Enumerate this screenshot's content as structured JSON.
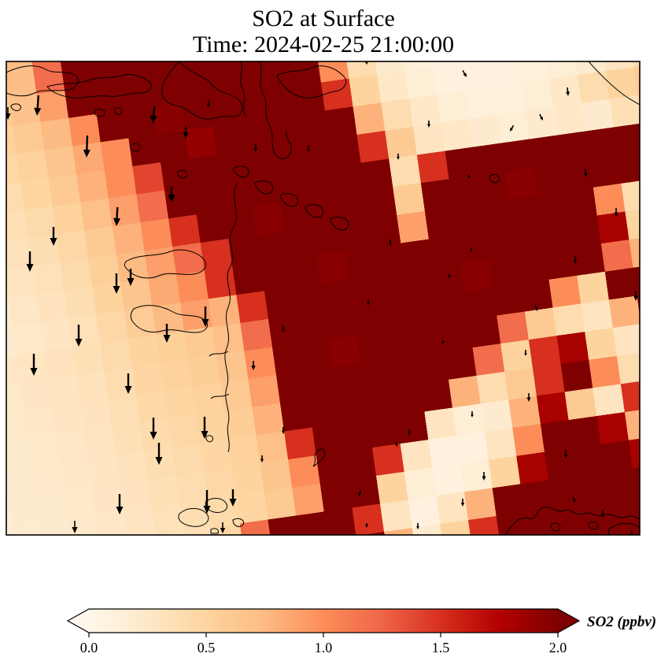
{
  "figure": {
    "background": "#ffffff"
  },
  "chart_data": {
    "type": "heatmap",
    "title": "SO2 at Surface",
    "subtitle": "Time: 2024-02-25 21:00:00",
    "variable": "SO2",
    "units": "ppbv",
    "legend_position": "bottom",
    "colorbar": {
      "label": "SO2 (ppbv)",
      "ticks": [
        0.0,
        0.5,
        1.0,
        1.5,
        2.0
      ],
      "vmin": 0.0,
      "vmax": 2.0,
      "extend": "both",
      "colormap": "OrRd",
      "over_color": "#7f0000",
      "under_color": "#fff7ec"
    },
    "grid": {
      "rows": 19,
      "cols": 26,
      "note": "SO2 ppbv values; 2.3 means above colorbar max (rendered with over color)",
      "values": [
        [
          0.6,
          0.62,
          0.66,
          0.72,
          1.2,
          2.3,
          2.3,
          2.3,
          2.3,
          2.3,
          2.3,
          2.3,
          2.3,
          2.3,
          1.2,
          0.5,
          0.2,
          0.1,
          0.08,
          0.08,
          0.08,
          0.1,
          0.12,
          0.15,
          0.2,
          0.3
        ],
        [
          0.5,
          0.55,
          0.6,
          0.68,
          0.9,
          2.3,
          2.3,
          2.3,
          2.3,
          2.3,
          2.3,
          2.3,
          2.3,
          2.3,
          1.0,
          0.4,
          0.2,
          0.12,
          0.1,
          0.08,
          0.08,
          0.1,
          0.12,
          0.15,
          0.2,
          0.3
        ],
        [
          0.42,
          0.46,
          0.52,
          0.6,
          0.75,
          1.0,
          2.3,
          2.3,
          1.95,
          2.3,
          2.3,
          2.3,
          2.3,
          2.3,
          1.5,
          0.5,
          0.25,
          0.15,
          0.1,
          0.1,
          0.1,
          0.12,
          0.15,
          0.2,
          0.3,
          0.4
        ],
        [
          0.36,
          0.4,
          0.45,
          0.52,
          0.65,
          0.85,
          1.0,
          2.3,
          2.3,
          1.9,
          2.3,
          2.3,
          2.3,
          2.3,
          2.3,
          0.8,
          0.4,
          0.25,
          0.15,
          0.12,
          0.12,
          0.15,
          0.25,
          0.4,
          0.5,
          0.6
        ],
        [
          0.32,
          0.36,
          0.4,
          0.48,
          0.6,
          0.8,
          1.0,
          1.4,
          2.3,
          2.3,
          2.3,
          2.3,
          2.3,
          2.3,
          2.3,
          1.5,
          0.6,
          0.3,
          0.25,
          0.2,
          0.15,
          0.2,
          0.25,
          0.2,
          0.35,
          0.5
        ],
        [
          0.28,
          0.32,
          0.36,
          0.42,
          0.52,
          0.7,
          0.9,
          1.2,
          2.3,
          2.3,
          2.3,
          2.3,
          2.3,
          2.3,
          2.3,
          2.3,
          0.4,
          1.5,
          2.3,
          2.0,
          2.3,
          2.3,
          2.3,
          2.3,
          2.0,
          0.8
        ],
        [
          0.25,
          0.28,
          0.32,
          0.38,
          0.46,
          0.6,
          0.8,
          1.0,
          1.5,
          2.3,
          2.3,
          1.95,
          2.3,
          2.3,
          2.3,
          2.3,
          0.6,
          2.3,
          2.3,
          2.3,
          1.95,
          2.3,
          2.3,
          2.3,
          2.3,
          0.4
        ],
        [
          0.22,
          0.25,
          0.29,
          0.34,
          0.42,
          0.55,
          0.75,
          0.9,
          1.2,
          1.5,
          2.3,
          2.3,
          2.3,
          2.3,
          2.3,
          2.3,
          0.9,
          2.3,
          2.3,
          2.3,
          2.3,
          2.3,
          2.3,
          1.0,
          0.4,
          0.3
        ],
        [
          0.2,
          0.23,
          0.26,
          0.31,
          0.38,
          0.5,
          0.65,
          0.85,
          1.0,
          1.5,
          2.3,
          2.3,
          2.3,
          1.95,
          2.3,
          2.3,
          2.3,
          2.3,
          2.3,
          2.3,
          2.3,
          2.3,
          2.3,
          1.8,
          0.5,
          0.3
        ],
        [
          0.18,
          0.21,
          0.24,
          0.28,
          0.34,
          0.45,
          0.58,
          0.75,
          0.9,
          0.8,
          1.5,
          2.3,
          2.3,
          2.3,
          2.3,
          2.3,
          2.3,
          2.3,
          1.95,
          2.3,
          2.3,
          2.3,
          2.3,
          1.2,
          0.8,
          1.5
        ],
        [
          0.24,
          0.26,
          0.28,
          0.31,
          0.35,
          0.42,
          0.5,
          0.55,
          0.6,
          0.7,
          1.2,
          2.3,
          2.3,
          2.3,
          2.3,
          2.3,
          2.3,
          2.3,
          2.3,
          2.3,
          2.3,
          1.0,
          0.5,
          2.0,
          2.3,
          2.3
        ],
        [
          0.22,
          0.24,
          0.27,
          0.3,
          0.33,
          0.4,
          0.47,
          0.52,
          0.56,
          0.65,
          1.0,
          2.3,
          2.3,
          1.95,
          2.3,
          2.3,
          2.3,
          2.3,
          2.3,
          1.2,
          0.6,
          0.4,
          0.3,
          0.8,
          2.3,
          2.3
        ],
        [
          0.21,
          0.23,
          0.25,
          0.28,
          0.31,
          0.37,
          0.44,
          0.48,
          0.52,
          0.6,
          0.9,
          2.3,
          2.3,
          2.3,
          2.3,
          2.3,
          2.3,
          2.3,
          1.2,
          0.5,
          1.5,
          1.8,
          0.5,
          0.3,
          1.2,
          2.3
        ],
        [
          0.2,
          0.22,
          0.24,
          0.26,
          0.3,
          0.35,
          0.41,
          0.45,
          0.5,
          0.56,
          0.8,
          2.3,
          2.3,
          2.3,
          2.3,
          2.3,
          2.3,
          0.8,
          0.4,
          0.6,
          1.5,
          2.0,
          1.0,
          0.4,
          0.3,
          1.0
        ],
        [
          0.19,
          0.21,
          0.23,
          0.25,
          0.28,
          0.33,
          0.38,
          0.42,
          0.47,
          0.52,
          0.7,
          1.5,
          2.3,
          2.3,
          2.3,
          2.3,
          0.3,
          0.15,
          0.2,
          0.8,
          1.8,
          0.6,
          0.3,
          1.5,
          2.3,
          1.0
        ],
        [
          0.18,
          0.2,
          0.22,
          0.24,
          0.27,
          0.31,
          0.36,
          0.4,
          0.45,
          0.5,
          0.65,
          1.0,
          2.3,
          2.3,
          1.5,
          0.3,
          0.1,
          0.1,
          0.3,
          1.0,
          2.3,
          2.3,
          1.8,
          0.8,
          1.5,
          2.3
        ],
        [
          0.17,
          0.19,
          0.21,
          0.23,
          0.26,
          0.3,
          0.34,
          0.38,
          0.43,
          0.48,
          0.6,
          0.9,
          2.3,
          2.3,
          0.5,
          0.15,
          0.1,
          0.15,
          0.5,
          1.8,
          2.3,
          2.3,
          2.3,
          1.8,
          2.3,
          2.3
        ],
        [
          0.17,
          0.18,
          0.2,
          0.22,
          0.25,
          0.29,
          0.33,
          0.37,
          0.45,
          1.2,
          2.3,
          2.3,
          2.3,
          1.5,
          0.3,
          0.1,
          0.3,
          0.8,
          2.3,
          2.3,
          2.3,
          2.3,
          2.3,
          2.3,
          2.3,
          2.3
        ],
        [
          0.16,
          0.17,
          0.19,
          0.21,
          0.24,
          0.28,
          0.32,
          0.36,
          0.44,
          1.0,
          2.3,
          2.3,
          2.3,
          2.3,
          0.8,
          0.2,
          0.5,
          1.5,
          2.3,
          2.3,
          2.3,
          2.3,
          2.3,
          2.3,
          2.3,
          2.3
        ]
      ]
    },
    "wind_arrows": {
      "note": "[tip_x_px, tip_y_px, length_px, rotation_deg_from_south]",
      "list": [
        [
          47,
          147,
          26,
          4
        ],
        [
          10,
          152,
          16,
          0
        ],
        [
          110,
          200,
          28,
          2
        ],
        [
          194,
          157,
          22,
          6
        ],
        [
          236,
          176,
          16,
          0
        ],
        [
          265,
          137,
          10,
          0
        ],
        [
          325,
          193,
          10,
          0
        ],
        [
          392,
          193,
          8,
          0
        ],
        [
          218,
          257,
          20,
          0
        ],
        [
          148,
          287,
          24,
          3
        ],
        [
          68,
          312,
          24,
          0
        ],
        [
          38,
          345,
          26,
          0
        ],
        [
          148,
          373,
          26,
          0
        ],
        [
          166,
          363,
          22,
          0
        ],
        [
          261,
          415,
          26,
          0
        ],
        [
          100,
          440,
          28,
          0
        ],
        [
          212,
          435,
          24,
          0
        ],
        [
          43,
          477,
          28,
          0
        ],
        [
          163,
          500,
          26,
          0
        ],
        [
          322,
          470,
          12,
          0
        ],
        [
          360,
          422,
          9,
          0
        ],
        [
          195,
          558,
          28,
          0
        ],
        [
          202,
          590,
          28,
          0
        ],
        [
          260,
          557,
          28,
          0
        ],
        [
          360,
          551,
          9,
          0
        ],
        [
          333,
          587,
          9,
          0
        ],
        [
          263,
          652,
          30,
          0
        ],
        [
          296,
          643,
          22,
          0
        ],
        [
          152,
          653,
          26,
          0
        ],
        [
          95,
          677,
          16,
          0
        ],
        [
          283,
          677,
          14,
          0
        ],
        [
          467,
          82,
          9,
          -22
        ],
        [
          593,
          98,
          10,
          -30
        ],
        [
          722,
          122,
          11,
          -5
        ],
        [
          690,
          153,
          9,
          -28
        ],
        [
          648,
          167,
          9,
          30
        ],
        [
          545,
          162,
          9,
          0
        ],
        [
          506,
          203,
          8,
          0
        ],
        [
          596,
          227,
          5,
          0
        ],
        [
          745,
          225,
          11,
          -8
        ],
        [
          783,
          275,
          11,
          0
        ],
        [
          496,
          312,
          8,
          0
        ],
        [
          599,
          320,
          5,
          0
        ],
        [
          731,
          335,
          10,
          0
        ],
        [
          571,
          353,
          5,
          0
        ],
        [
          808,
          382,
          13,
          0
        ],
        [
          468,
          388,
          8,
          0
        ],
        [
          683,
          395,
          8,
          -20
        ],
        [
          668,
          452,
          8,
          0
        ],
        [
          563,
          437,
          5,
          0
        ],
        [
          672,
          510,
          11,
          0
        ],
        [
          600,
          530,
          8,
          0
        ],
        [
          520,
          553,
          8,
          0
        ],
        [
          505,
          567,
          6,
          -22
        ],
        [
          456,
          630,
          8,
          18
        ],
        [
          615,
          610,
          11,
          0
        ],
        [
          719,
          582,
          11,
          0
        ],
        [
          588,
          643,
          10,
          0
        ],
        [
          731,
          638,
          8,
          -22
        ],
        [
          766,
          657,
          10,
          0
        ],
        [
          466,
          670,
          6,
          0
        ],
        [
          531,
          672,
          8,
          0
        ],
        [
          803,
          687,
          13,
          0
        ]
      ]
    }
  }
}
